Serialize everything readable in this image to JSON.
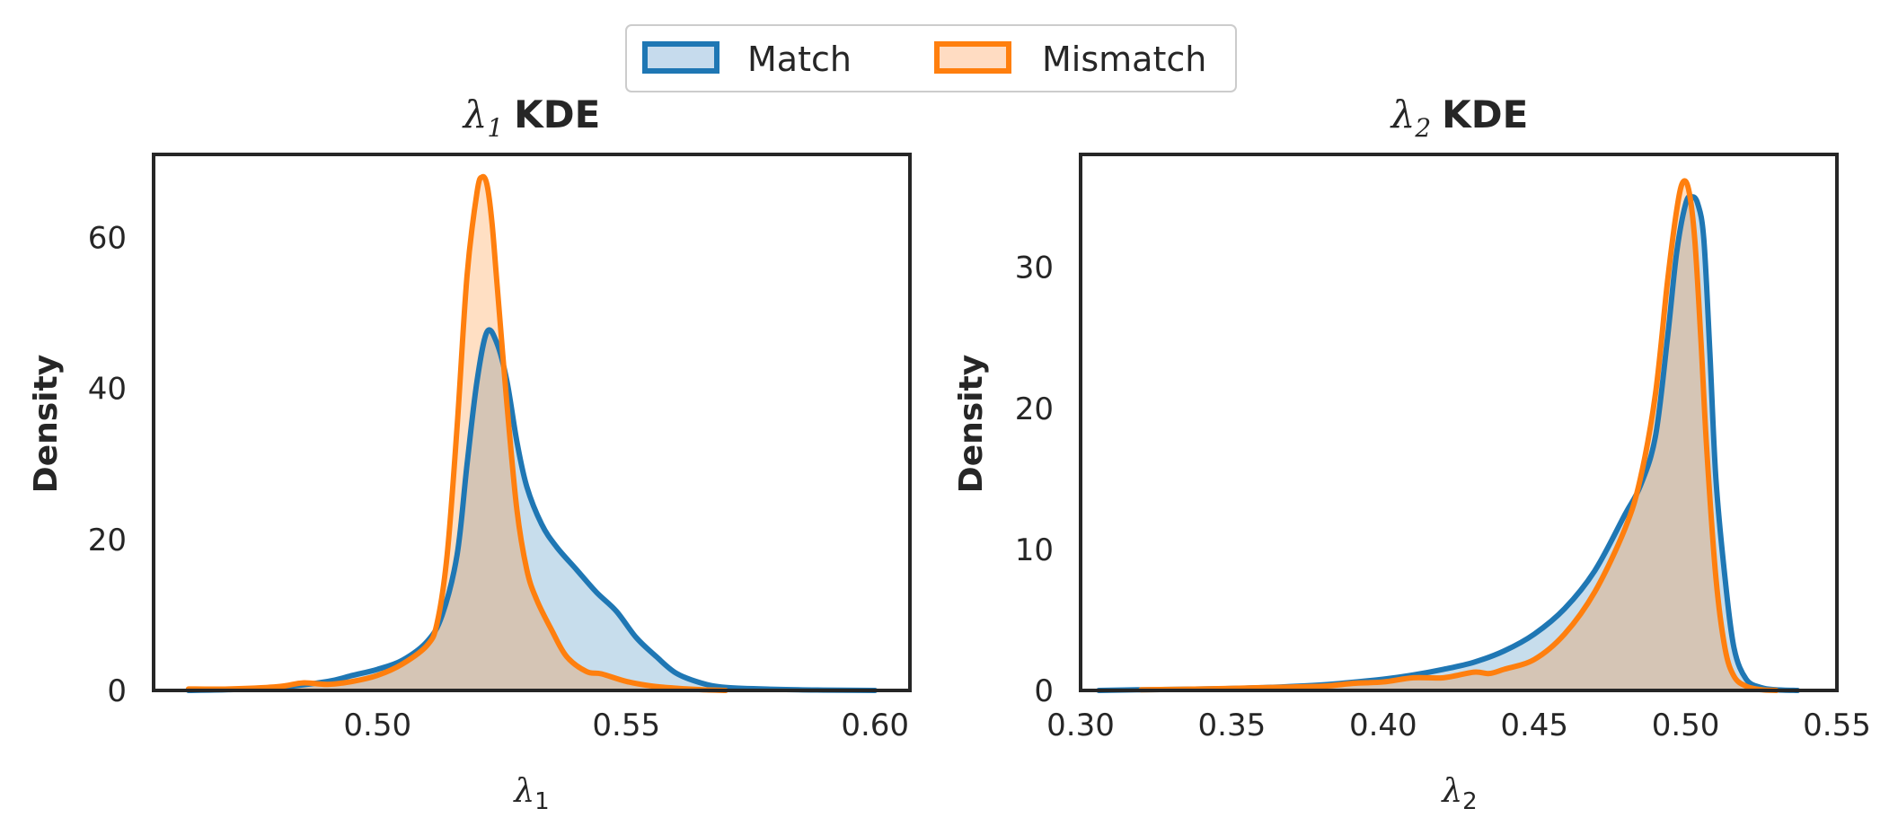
{
  "legend": {
    "entries": [
      {
        "label": "Match",
        "color": "#1f77b4",
        "fill": "#c6dbed"
      },
      {
        "label": "Mismatch",
        "color": "#ff7f0e",
        "fill": "#ffdcc2"
      }
    ]
  },
  "chart_data": [
    {
      "type": "area",
      "title_symbol": "λ",
      "title_subscript": "1",
      "title_rest": "KDE",
      "xlabel_symbol": "λ",
      "xlabel_subscript": "1",
      "ylabel": "Density",
      "xlim": [
        0.455,
        0.607
      ],
      "ylim": [
        0,
        71
      ],
      "xticks": [
        0.5,
        0.55,
        0.6
      ],
      "xtick_labels": [
        "0.50",
        "0.55",
        "0.60"
      ],
      "yticks": [
        0,
        20,
        40,
        60
      ],
      "ytick_labels": [
        "0",
        "20",
        "40",
        "60"
      ],
      "series": [
        {
          "name": "Match",
          "x": [
            0.462,
            0.47,
            0.48,
            0.49,
            0.495,
            0.5,
            0.505,
            0.51,
            0.513,
            0.516,
            0.518,
            0.52,
            0.522,
            0.524,
            0.526,
            0.528,
            0.53,
            0.533,
            0.536,
            0.54,
            0.544,
            0.548,
            0.552,
            0.556,
            0.56,
            0.565,
            0.57,
            0.58,
            0.59,
            0.6
          ],
          "y": [
            0,
            0.1,
            0.4,
            1.2,
            2.0,
            2.8,
            4.0,
            6.5,
            10,
            18,
            30,
            41,
            47.5,
            46,
            41,
            33,
            27,
            22,
            19,
            16,
            13,
            10.5,
            7,
            4.5,
            2.3,
            1.0,
            0.4,
            0.15,
            0.05,
            0
          ]
        },
        {
          "name": "Mismatch",
          "x": [
            0.462,
            0.47,
            0.48,
            0.485,
            0.49,
            0.495,
            0.5,
            0.505,
            0.51,
            0.512,
            0.514,
            0.516,
            0.518,
            0.52,
            0.521,
            0.522,
            0.523,
            0.524,
            0.526,
            0.528,
            0.53,
            0.532,
            0.535,
            0.538,
            0.542,
            0.545,
            0.55,
            0.555,
            0.56,
            0.565,
            0.57
          ],
          "y": [
            0.2,
            0.2,
            0.5,
            1.0,
            0.8,
            1.2,
            2.0,
            3.5,
            6.0,
            9,
            18,
            35,
            55,
            66,
            68,
            67,
            62,
            54,
            38,
            24,
            16,
            12,
            8,
            4.5,
            2.5,
            2.2,
            1.2,
            0.6,
            0.3,
            0.1,
            0
          ]
        }
      ]
    },
    {
      "type": "area",
      "title_symbol": "λ",
      "title_subscript": "2",
      "title_rest": "KDE",
      "xlabel_symbol": "λ",
      "xlabel_subscript": "2",
      "ylabel": "Density",
      "xlim": [
        0.3,
        0.55
      ],
      "ylim": [
        0,
        38
      ],
      "xticks": [
        0.3,
        0.35,
        0.4,
        0.45,
        0.5,
        0.55
      ],
      "xtick_labels": [
        "0.30",
        "0.35",
        "0.40",
        "0.45",
        "0.50",
        "0.55"
      ],
      "yticks": [
        0,
        10,
        20,
        30
      ],
      "ytick_labels": [
        "0",
        "10",
        "20",
        "30"
      ],
      "series": [
        {
          "name": "Match",
          "x": [
            0.306,
            0.32,
            0.34,
            0.36,
            0.38,
            0.4,
            0.41,
            0.42,
            0.43,
            0.44,
            0.45,
            0.46,
            0.47,
            0.48,
            0.485,
            0.49,
            0.494,
            0.497,
            0.5,
            0.502,
            0.504,
            0.506,
            0.508,
            0.51,
            0.513,
            0.516,
            0.52,
            0.525,
            0.53,
            0.537
          ],
          "y": [
            0,
            0.05,
            0.1,
            0.2,
            0.4,
            0.8,
            1.1,
            1.5,
            2.0,
            2.8,
            4.0,
            5.8,
            8.5,
            12.5,
            14.5,
            18,
            25,
            31,
            34.5,
            35,
            34.5,
            32,
            24,
            15,
            8,
            3,
            0.8,
            0.2,
            0.05,
            0
          ]
        },
        {
          "name": "Mismatch",
          "x": [
            0.32,
            0.34,
            0.36,
            0.38,
            0.39,
            0.4,
            0.41,
            0.42,
            0.43,
            0.435,
            0.44,
            0.45,
            0.46,
            0.47,
            0.48,
            0.485,
            0.49,
            0.494,
            0.497,
            0.499,
            0.501,
            0.503,
            0.505,
            0.507,
            0.51,
            0.513,
            0.516,
            0.52,
            0.525,
            0.53
          ],
          "y": [
            0.05,
            0.1,
            0.2,
            0.3,
            0.5,
            0.6,
            0.9,
            0.9,
            1.3,
            1.2,
            1.5,
            2.2,
            4.0,
            7.0,
            11.5,
            15,
            21,
            29,
            34,
            36,
            35.5,
            32,
            25,
            17,
            8,
            3,
            1,
            0.3,
            0.05,
            0
          ]
        }
      ]
    }
  ]
}
